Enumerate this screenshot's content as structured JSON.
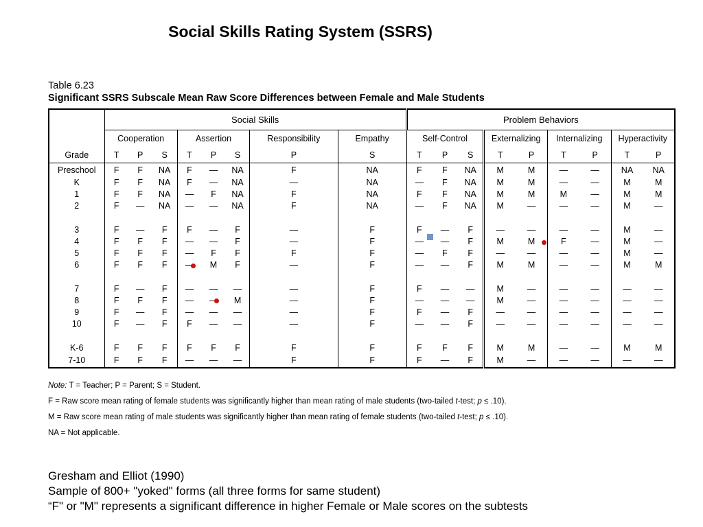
{
  "title": "Social Skills Rating System (SSRS)",
  "caption": {
    "label": "Table 6.23",
    "title": "Significant SSRS Subscale Mean Raw Score Differences between Female and Male Students"
  },
  "table": {
    "group_headers": {
      "social": "Social Skills",
      "problem": "Problem Behaviors"
    },
    "subscales": {
      "cooperation": "Cooperation",
      "assertion": "Assertion",
      "responsibility": "Responsibility",
      "empathy": "Empathy",
      "self_control": "Self-Control",
      "externalizing": "Externalizing",
      "internalizing": "Internalizing",
      "hyperactivity": "Hyperactivity"
    },
    "grade_header": "Grade",
    "raters": [
      "T",
      "P",
      "S",
      "T",
      "P",
      "S",
      "P",
      "S",
      "T",
      "P",
      "S",
      "T",
      "P",
      "T",
      "P",
      "T",
      "P"
    ],
    "rows": [
      {
        "grade": "Preschool",
        "cells": [
          "F",
          "F",
          "NA",
          "F",
          "—",
          "NA",
          "F",
          "NA",
          "F",
          "F",
          "NA",
          "M",
          "M",
          "—",
          "—",
          "NA",
          "NA"
        ]
      },
      {
        "grade": "K",
        "cells": [
          "F",
          "F",
          "NA",
          "F",
          "—",
          "NA",
          "—",
          "NA",
          "—",
          "F",
          "NA",
          "M",
          "M",
          "—",
          "—",
          "M",
          "M"
        ]
      },
      {
        "grade": "1",
        "cells": [
          "F",
          "F",
          "NA",
          "—",
          "F",
          "NA",
          "F",
          "NA",
          "F",
          "F",
          "NA",
          "M",
          "M",
          "M",
          "—",
          "M",
          "M"
        ]
      },
      {
        "grade": "2",
        "cells": [
          "F",
          "—",
          "NA",
          "—",
          "—",
          "NA",
          "F",
          "NA",
          "—",
          "F",
          "NA",
          "M",
          "—",
          "—",
          "—",
          "M",
          "—"
        ]
      },
      {
        "grade": "3",
        "cells": [
          "F",
          "—",
          "F",
          "F",
          "—",
          "F",
          "—",
          "F",
          "F",
          "—",
          "F",
          "—",
          "—",
          "—",
          "—",
          "M",
          "—"
        ]
      },
      {
        "grade": "4",
        "cells": [
          "F",
          "F",
          "F",
          "—",
          "—",
          "F",
          "—",
          "F",
          "—",
          "—",
          "F",
          "M",
          "M",
          "F",
          "—",
          "M",
          "—"
        ]
      },
      {
        "grade": "5",
        "cells": [
          "F",
          "F",
          "F",
          "—",
          "F",
          "F",
          "F",
          "F",
          "—",
          "F",
          "F",
          "—",
          "—",
          "—",
          "—",
          "M",
          "—"
        ]
      },
      {
        "grade": "6",
        "cells": [
          "F",
          "F",
          "F",
          "—",
          "M",
          "F",
          "—",
          "F",
          "—",
          "—",
          "F",
          "M",
          "M",
          "—",
          "—",
          "M",
          "M"
        ]
      },
      {
        "grade": "7",
        "cells": [
          "F",
          "—",
          "F",
          "—",
          "—",
          "—",
          "—",
          "F",
          "F",
          "—",
          "—",
          "M",
          "—",
          "—",
          "—",
          "—",
          "—"
        ]
      },
      {
        "grade": "8",
        "cells": [
          "F",
          "F",
          "F",
          "—",
          "—",
          "M",
          "—",
          "F",
          "—",
          "—",
          "—",
          "M",
          "—",
          "—",
          "—",
          "—",
          "—"
        ]
      },
      {
        "grade": "9",
        "cells": [
          "F",
          "—",
          "F",
          "—",
          "—",
          "—",
          "—",
          "F",
          "F",
          "—",
          "F",
          "—",
          "—",
          "—",
          "—",
          "—",
          "—"
        ]
      },
      {
        "grade": "10",
        "cells": [
          "F",
          "—",
          "F",
          "F",
          "—",
          "—",
          "—",
          "F",
          "—",
          "—",
          "F",
          "—",
          "—",
          "—",
          "—",
          "—",
          "—"
        ]
      },
      {
        "grade": "K-6",
        "cells": [
          "F",
          "F",
          "F",
          "F",
          "F",
          "F",
          "F",
          "F",
          "F",
          "F",
          "F",
          "M",
          "M",
          "—",
          "—",
          "M",
          "M"
        ]
      },
      {
        "grade": "7-10",
        "cells": [
          "F",
          "F",
          "F",
          "—",
          "—",
          "—",
          "F",
          "F",
          "F",
          "—",
          "F",
          "M",
          "—",
          "—",
          "—",
          "—",
          "—"
        ]
      }
    ]
  },
  "notes": {
    "note_label": "Note:",
    "note_text": "T = Teacher;  P = Parent;  S = Student.",
    "f_def_a": "F = Raw score mean rating of female students was significantly higher than mean rating of male students (two-tailed ",
    "f_def_t": "t",
    "f_def_b": "-test; ",
    "f_def_p": "p",
    "f_def_c": " ≤ .10).",
    "m_def_a": "M = Raw score mean rating of male students was significantly higher than mean rating of female students (two-tailed ",
    "m_def_t": "t",
    "m_def_b": "-test; ",
    "m_def_p": "p",
    "m_def_c": " ≤ .10).",
    "na_def": "NA = Not applicable."
  },
  "footer": {
    "line1": "Gresham and Elliot (1990)",
    "line2": "Sample of 800+ \"yoked\" forms (all three forms for same student)",
    "line3": "“F\" or \"M\" represents a significant difference in higher Female or Male scores on the subtests"
  },
  "colors": {
    "marker_red": "#cc1111",
    "marker_blue": "#6f95c9"
  }
}
